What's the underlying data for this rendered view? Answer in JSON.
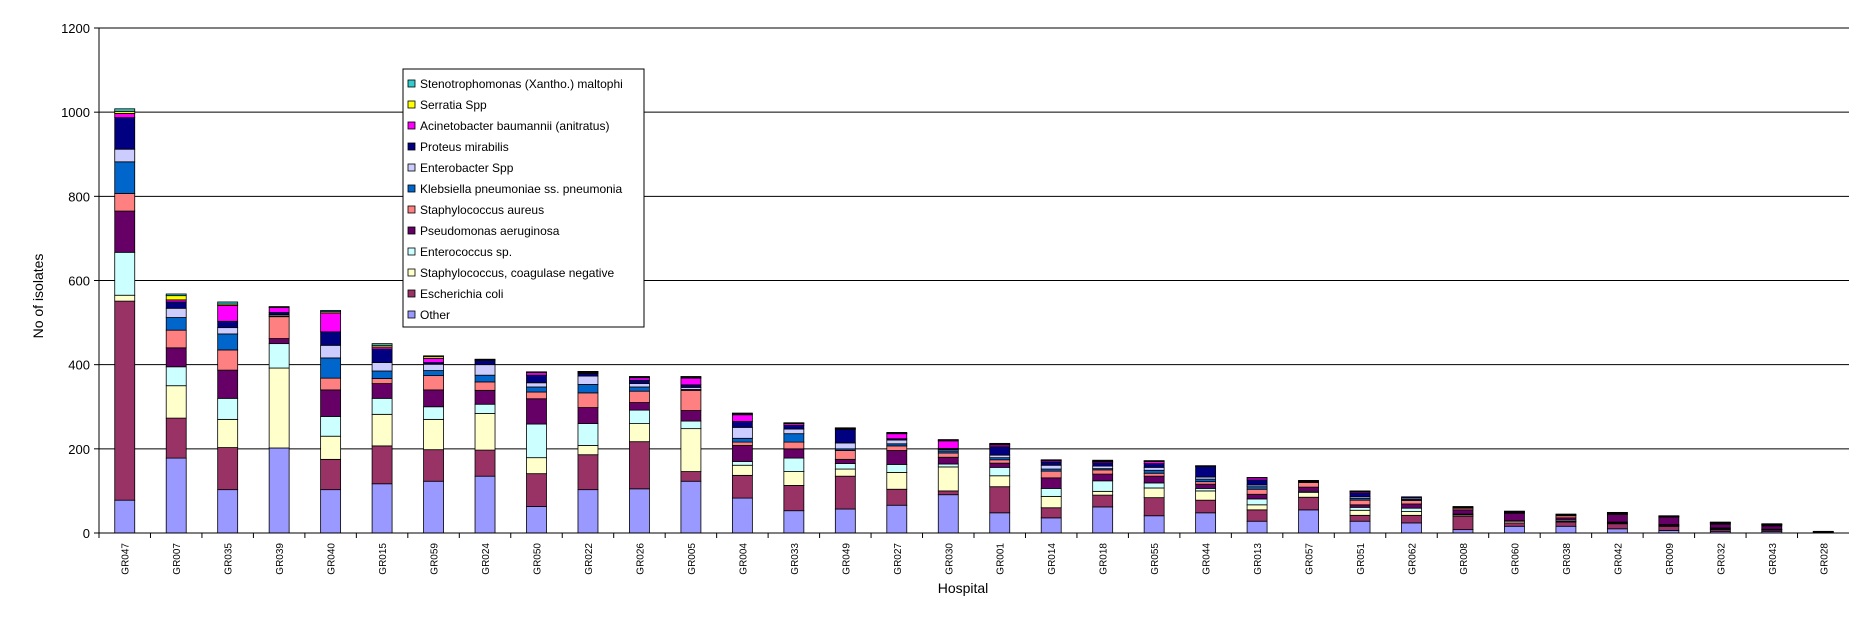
{
  "chart_data": {
    "type": "bar",
    "stacked": true,
    "title": "",
    "xlabel": "Hospital",
    "ylabel": "No of isolates",
    "ylim": [
      0,
      1200
    ],
    "yticks": [
      0,
      200,
      400,
      600,
      800,
      1000,
      1200
    ],
    "grid": "horizontal",
    "legend_position": "upper-left",
    "categories": [
      "GR047",
      "GR007",
      "GR035",
      "GR039",
      "GR040",
      "GR015",
      "GR059",
      "GR024",
      "GR050",
      "GR022",
      "GR026",
      "GR005",
      "GR004",
      "GR033",
      "GR049",
      "GR027",
      "GR030",
      "GR001",
      "GR014",
      "GR018",
      "GR055",
      "GR044",
      "GR013",
      "GR057",
      "GR051",
      "GR062",
      "GR008",
      "GR060",
      "GR038",
      "GR042",
      "GR009",
      "GR032",
      "GR043",
      "GR028"
    ],
    "series": [
      {
        "name": "Other",
        "color": "#9999ff",
        "values": [
          78,
          178,
          103,
          202,
          103,
          117,
          123,
          135,
          63,
          103,
          105,
          123,
          83,
          53,
          57,
          66,
          91,
          48,
          36,
          62,
          41,
          48,
          28,
          55,
          28,
          24,
          8,
          16,
          16,
          10,
          6,
          4,
          4,
          2
        ]
      },
      {
        "name": "Escherichia coli",
        "color": "#993366",
        "values": [
          473,
          95,
          100,
          0,
          72,
          90,
          75,
          62,
          78,
          83,
          112,
          23,
          54,
          60,
          78,
          38,
          9,
          62,
          24,
          28,
          43,
          30,
          27,
          30,
          14,
          18,
          32,
          8,
          10,
          12,
          10,
          4,
          3,
          1
        ]
      },
      {
        "name": "Staphylococcus, coagulase negative",
        "color": "#ffffcc",
        "values": [
          14,
          77,
          67,
          190,
          55,
          75,
          72,
          87,
          38,
          22,
          43,
          102,
          24,
          33,
          17,
          40,
          57,
          26,
          27,
          9,
          23,
          22,
          12,
          11,
          12,
          9,
          3,
          4,
          2,
          2,
          2,
          2,
          1,
          0
        ]
      },
      {
        "name": "Enterococcus sp.",
        "color": "#ccffff",
        "values": [
          102,
          45,
          50,
          58,
          47,
          38,
          30,
          22,
          80,
          52,
          32,
          18,
          9,
          32,
          13,
          19,
          7,
          20,
          19,
          25,
          12,
          6,
          14,
          3,
          7,
          8,
          2,
          1,
          3,
          2,
          2,
          2,
          1,
          0
        ]
      },
      {
        "name": "Pseudomonas aeruginosa",
        "color": "#660066",
        "values": [
          98,
          45,
          67,
          12,
          63,
          35,
          40,
          33,
          60,
          38,
          18,
          25,
          38,
          22,
          10,
          33,
          16,
          10,
          25,
          16,
          16,
          10,
          11,
          10,
          6,
          10,
          10,
          18,
          5,
          18,
          18,
          9,
          8,
          1
        ]
      },
      {
        "name": "Staphylococcus aureus",
        "color": "#ff8080",
        "values": [
          42,
          42,
          48,
          52,
          28,
          12,
          34,
          20,
          16,
          35,
          27,
          48,
          8,
          16,
          21,
          11,
          10,
          8,
          16,
          10,
          7,
          6,
          12,
          11,
          11,
          8,
          4,
          2,
          5,
          2,
          0,
          2,
          2,
          0
        ]
      },
      {
        "name": "Klebsiella pneumoniae ss. pneumonia",
        "color": "#0066cc",
        "values": [
          75,
          30,
          38,
          2,
          48,
          18,
          12,
          16,
          12,
          20,
          10,
          2,
          9,
          20,
          4,
          5,
          5,
          5,
          5,
          3,
          7,
          6,
          6,
          1,
          4,
          3,
          1,
          1,
          1,
          1,
          1,
          1,
          1,
          0
        ]
      },
      {
        "name": "Enterobacter Spp",
        "color": "#ccccff",
        "values": [
          30,
          22,
          15,
          3,
          30,
          20,
          15,
          25,
          10,
          20,
          8,
          5,
          26,
          11,
          14,
          9,
          3,
          6,
          9,
          6,
          7,
          5,
          4,
          1,
          4,
          3,
          1,
          1,
          2,
          1,
          1,
          1,
          1,
          0
        ]
      },
      {
        "name": "Proteus mirabilis",
        "color": "#000080",
        "values": [
          75,
          15,
          15,
          5,
          32,
          32,
          4,
          10,
          18,
          6,
          8,
          6,
          14,
          9,
          32,
          3,
          3,
          20,
          8,
          8,
          9,
          25,
          12,
          1,
          9,
          3,
          2,
          1,
          1,
          1,
          1,
          1,
          1,
          0
        ]
      },
      {
        "name": "Acinetobacter baumannii (anitratus)",
        "color": "#ff00ff",
        "values": [
          10,
          5,
          38,
          12,
          45,
          5,
          10,
          0,
          6,
          2,
          6,
          16,
          16,
          4,
          2,
          12,
          18,
          4,
          3,
          3,
          5,
          0,
          5,
          1,
          3,
          0,
          0,
          0,
          0,
          0,
          0,
          0,
          0,
          0
        ]
      },
      {
        "name": "Serratia Spp",
        "color": "#ffff00",
        "values": [
          5,
          10,
          3,
          2,
          3,
          4,
          4,
          2,
          1,
          2,
          1,
          2,
          2,
          1,
          1,
          1,
          2,
          2,
          1,
          1,
          1,
          1,
          0,
          1,
          1,
          0,
          0,
          0,
          0,
          0,
          0,
          0,
          0,
          0
        ]
      },
      {
        "name": "Stenotrophomonas (Xantho.) maltophi",
        "color": "#33cccc",
        "values": [
          6,
          4,
          5,
          0,
          3,
          4,
          2,
          1,
          1,
          1,
          2,
          2,
          2,
          1,
          1,
          2,
          1,
          2,
          1,
          2,
          1,
          1,
          1,
          0,
          1,
          0,
          0,
          0,
          0,
          0,
          0,
          0,
          0,
          0
        ]
      }
    ]
  }
}
